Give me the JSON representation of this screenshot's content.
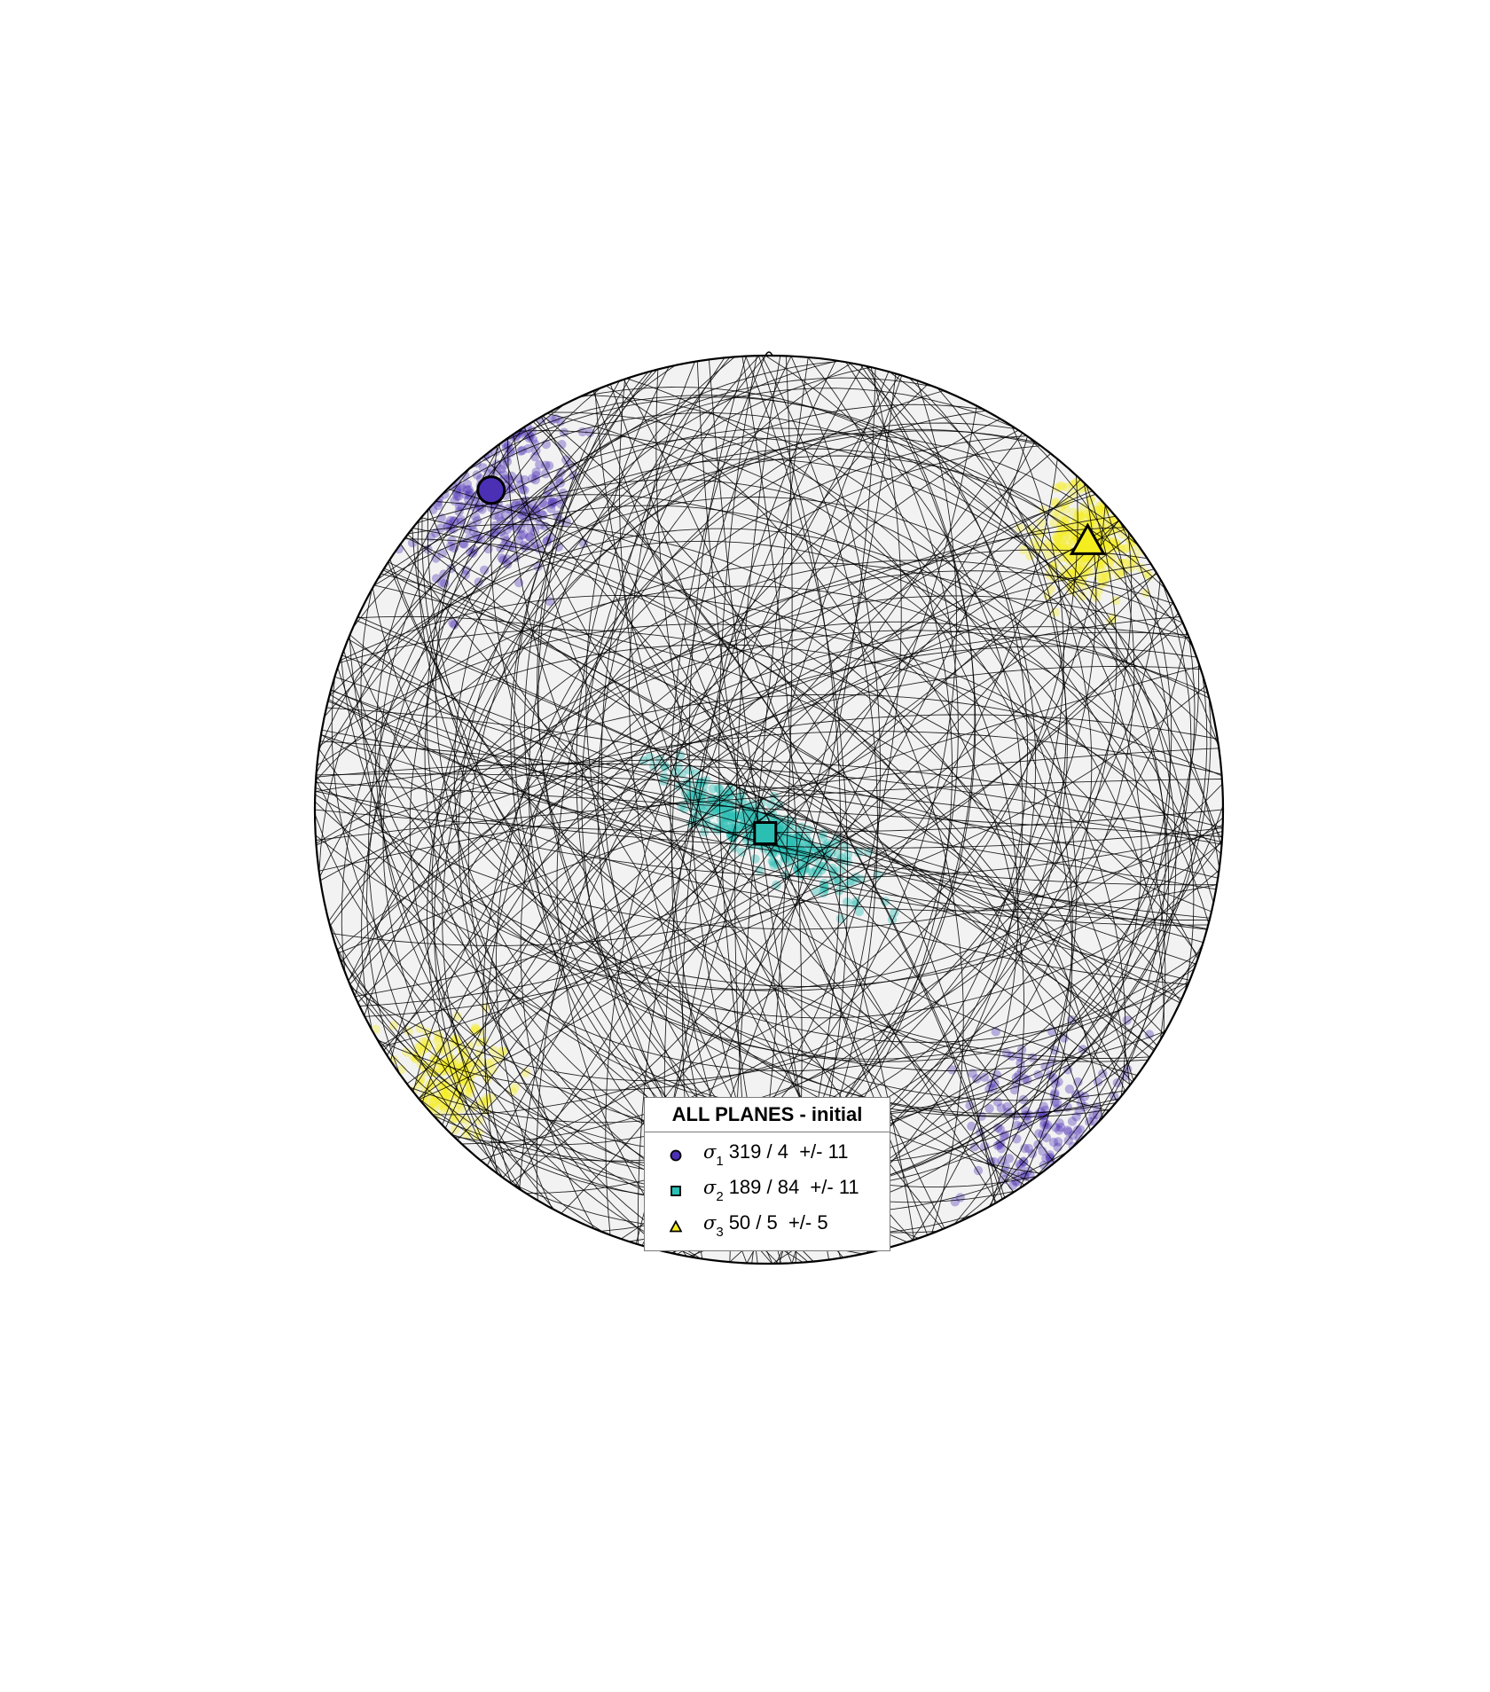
{
  "chart_data": {
    "type": "scatter",
    "projection": "lower-hemisphere stereonet (equal-angle)",
    "north_tick": true,
    "background_color": "#f2f2f2",
    "great_circle_color": "#000000",
    "legend": {
      "title": "ALL PLANES - initial",
      "placement": "bottom-center",
      "entries": [
        {
          "symbol": "σ",
          "subscript": "1",
          "text": "319 / 4  +/- 11",
          "marker": "circle",
          "color": "#4b2fb5"
        },
        {
          "symbol": "σ",
          "subscript": "2",
          "text": "189 / 84  +/- 11",
          "marker": "square",
          "color": "#2bbfb4"
        },
        {
          "symbol": "σ",
          "subscript": "3",
          "text": "50 / 5  +/- 5",
          "marker": "triangle",
          "color": "#f5ee1e"
        }
      ]
    },
    "principal_axes": [
      {
        "name": "sigma1",
        "trend": 319,
        "plunge": 4,
        "uncertainty": 11,
        "marker": "circle",
        "color": "#4b2fb5"
      },
      {
        "name": "sigma2",
        "trend": 189,
        "plunge": 84,
        "uncertainty": 11,
        "marker": "square",
        "color": "#2bbfb4"
      },
      {
        "name": "sigma3",
        "trend": 50,
        "plunge": 5,
        "uncertainty": 5,
        "marker": "triangle",
        "color": "#f5ee1e"
      }
    ]
  }
}
